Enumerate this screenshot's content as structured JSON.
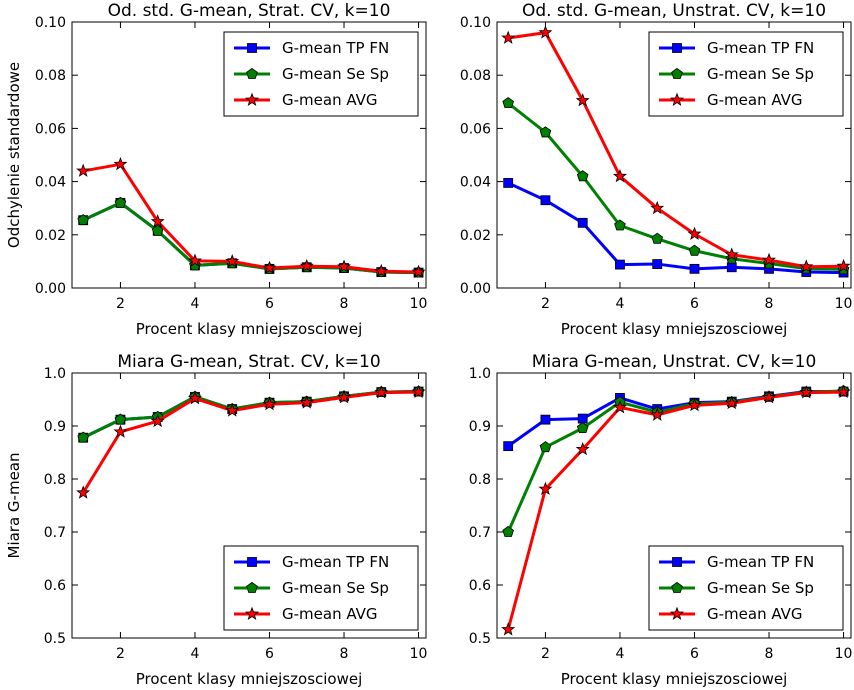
{
  "chart_data": [
    {
      "type": "line",
      "title": "Od. std. G-mean, Strat. CV, k=10",
      "xlabel": "Procent klasy mniejszosciowej",
      "ylabel": "Odchylenie standardowe",
      "xlim": [
        0.7,
        10.2
      ],
      "ylim": [
        0.0,
        0.1
      ],
      "xticks": [
        "2",
        "4",
        "6",
        "8",
        "10"
      ],
      "yticks": [
        "0.00",
        "0.02",
        "0.04",
        "0.06",
        "0.08",
        "0.10"
      ],
      "legend_position": "top-right",
      "x": [
        1,
        2,
        3,
        4,
        5,
        6,
        7,
        8,
        9,
        10
      ],
      "series": [
        {
          "name": "G-mean TP FN",
          "color": "#0000ff",
          "marker": "square",
          "values": [
            0.0255,
            0.032,
            0.0215,
            0.0085,
            0.0093,
            0.0072,
            0.0078,
            0.0075,
            0.006,
            0.0058
          ]
        },
        {
          "name": "G-mean Se Sp",
          "color": "#008000",
          "marker": "pentagon",
          "values": [
            0.0255,
            0.032,
            0.0215,
            0.0085,
            0.0093,
            0.0072,
            0.0078,
            0.0075,
            0.006,
            0.0058
          ]
        },
        {
          "name": "G-mean AVG",
          "color": "#ff0000",
          "marker": "star",
          "values": [
            0.044,
            0.0465,
            0.025,
            0.0102,
            0.01,
            0.0075,
            0.0082,
            0.008,
            0.0063,
            0.006
          ]
        }
      ]
    },
    {
      "type": "line",
      "title": "Od. std. G-mean, Unstrat. CV, k=10",
      "xlabel": "Procent klasy mniejszosciowej",
      "ylabel": "",
      "xlim": [
        0.7,
        10.2
      ],
      "ylim": [
        0.0,
        0.1
      ],
      "xticks": [
        "2",
        "4",
        "6",
        "8",
        "10"
      ],
      "yticks": [
        "0.00",
        "0.02",
        "0.04",
        "0.06",
        "0.08",
        "0.10"
      ],
      "legend_position": "top-right",
      "x": [
        1,
        2,
        3,
        4,
        5,
        6,
        7,
        8,
        9,
        10
      ],
      "series": [
        {
          "name": "G-mean TP FN",
          "color": "#0000ff",
          "marker": "square",
          "values": [
            0.0395,
            0.033,
            0.0245,
            0.0088,
            0.009,
            0.0072,
            0.0078,
            0.0072,
            0.006,
            0.0058
          ]
        },
        {
          "name": "G-mean Se Sp",
          "color": "#008000",
          "marker": "pentagon",
          "values": [
            0.0695,
            0.0585,
            0.042,
            0.0235,
            0.0185,
            0.014,
            0.011,
            0.0092,
            0.0073,
            0.007
          ]
        },
        {
          "name": "G-mean AVG",
          "color": "#ff0000",
          "marker": "star",
          "values": [
            0.094,
            0.096,
            0.0705,
            0.042,
            0.03,
            0.0203,
            0.0125,
            0.0105,
            0.008,
            0.0082
          ]
        }
      ]
    },
    {
      "type": "line",
      "title": "Miara G-mean, Strat. CV, k=10",
      "xlabel": "Procent klasy mniejszosciowej",
      "ylabel": "Miara G-mean",
      "xlim": [
        0.7,
        10.2
      ],
      "ylim": [
        0.5,
        1.0
      ],
      "xticks": [
        "2",
        "4",
        "6",
        "8",
        "10"
      ],
      "yticks": [
        "0.5",
        "0.6",
        "0.7",
        "0.8",
        "0.9",
        "1.0"
      ],
      "legend_position": "bottom-right",
      "x": [
        1,
        2,
        3,
        4,
        5,
        6,
        7,
        8,
        9,
        10
      ],
      "series": [
        {
          "name": "G-mean TP FN",
          "color": "#0000ff",
          "marker": "square",
          "values": [
            0.878,
            0.912,
            0.917,
            0.955,
            0.932,
            0.944,
            0.946,
            0.956,
            0.964,
            0.965
          ]
        },
        {
          "name": "G-mean Se Sp",
          "color": "#008000",
          "marker": "pentagon",
          "values": [
            0.878,
            0.912,
            0.917,
            0.955,
            0.932,
            0.944,
            0.946,
            0.956,
            0.964,
            0.965
          ]
        },
        {
          "name": "G-mean AVG",
          "color": "#ff0000",
          "marker": "star",
          "values": [
            0.774,
            0.889,
            0.909,
            0.952,
            0.929,
            0.941,
            0.944,
            0.954,
            0.963,
            0.964
          ]
        }
      ]
    },
    {
      "type": "line",
      "title": "Miara G-mean, Unstrat. CV, k=10",
      "xlabel": "Procent klasy mniejszosciowej",
      "ylabel": "",
      "xlim": [
        0.7,
        10.2
      ],
      "ylim": [
        0.5,
        1.0
      ],
      "xticks": [
        "2",
        "4",
        "6",
        "8",
        "10"
      ],
      "yticks": [
        "0.5",
        "0.6",
        "0.7",
        "0.8",
        "0.9",
        "1.0"
      ],
      "legend_position": "bottom-right",
      "x": [
        1,
        2,
        3,
        4,
        5,
        6,
        7,
        8,
        9,
        10
      ],
      "series": [
        {
          "name": "G-mean TP FN",
          "color": "#0000ff",
          "marker": "square",
          "values": [
            0.862,
            0.912,
            0.914,
            0.953,
            0.932,
            0.944,
            0.946,
            0.956,
            0.965,
            0.965
          ]
        },
        {
          "name": "G-mean Se Sp",
          "color": "#008000",
          "marker": "pentagon",
          "values": [
            0.7,
            0.86,
            0.896,
            0.945,
            0.926,
            0.942,
            0.945,
            0.955,
            0.964,
            0.966
          ]
        },
        {
          "name": "G-mean AVG",
          "color": "#ff0000",
          "marker": "star",
          "values": [
            0.516,
            0.781,
            0.856,
            0.935,
            0.921,
            0.939,
            0.943,
            0.954,
            0.963,
            0.964
          ]
        }
      ]
    }
  ]
}
